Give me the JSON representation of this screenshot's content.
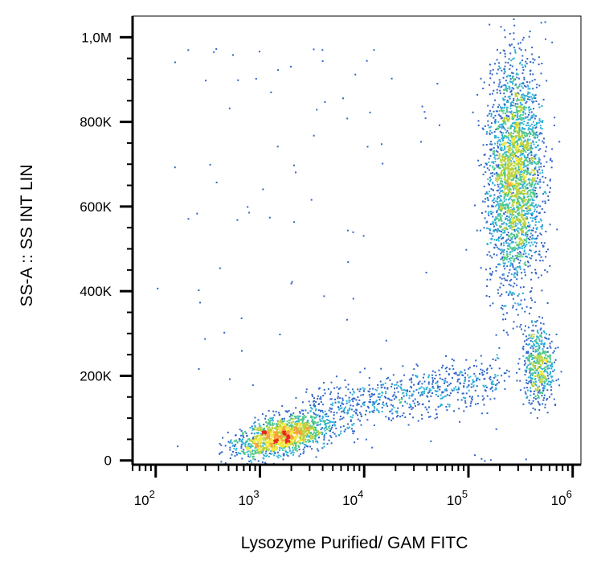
{
  "chart_data": {
    "type": "scatter",
    "subtype": "flow-cytometry-density-dot-plot",
    "title": "",
    "xlabel": "Lysozyme Purified/ GAM FITC",
    "ylabel": "SS-A :: SS INT LIN",
    "x_scale": "log",
    "y_scale": "linear",
    "xlim": [
      60,
      1200000
    ],
    "ylim": [
      -10000,
      1050000
    ],
    "x_ticks": [
      {
        "value": 100,
        "base": "10",
        "exp": "2"
      },
      {
        "value": 1000,
        "base": "10",
        "exp": "3"
      },
      {
        "value": 10000,
        "base": "10",
        "exp": "4"
      },
      {
        "value": 100000,
        "base": "10",
        "exp": "5"
      },
      {
        "value": 1000000,
        "base": "10",
        "exp": "6"
      }
    ],
    "y_ticks": [
      {
        "value": 0,
        "label": "0"
      },
      {
        "value": 200000,
        "label": "200K"
      },
      {
        "value": 400000,
        "label": "400K"
      },
      {
        "value": 600000,
        "label": "600K"
      },
      {
        "value": 800000,
        "label": "800K"
      },
      {
        "value": 1000000,
        "label": "1,0M"
      }
    ],
    "populations": [
      {
        "x_center": 1600,
        "y_center": 60000,
        "x_spread_log10": 0.22,
        "y_spread": 22000,
        "events": 1400
      },
      {
        "x_center": 280000,
        "y_center": 680000,
        "x_spread_log10": 0.13,
        "y_spread": 140000,
        "events": 2600
      },
      {
        "x_center": 460000,
        "y_center": 230000,
        "x_spread_log10": 0.08,
        "y_spread": 45000,
        "events": 500
      },
      {
        "x_start": 3000,
        "x_end": 200000,
        "y_start": 110000,
        "y_end": 200000,
        "events": 700
      }
    ],
    "colormap": [
      "#2b3a9f",
      "#2f64c8",
      "#2fb1d6",
      "#4fc88a",
      "#bcd23a",
      "#f3e83b",
      "#f6a03a",
      "#e8261c"
    ],
    "grid": false,
    "legend": "none"
  }
}
